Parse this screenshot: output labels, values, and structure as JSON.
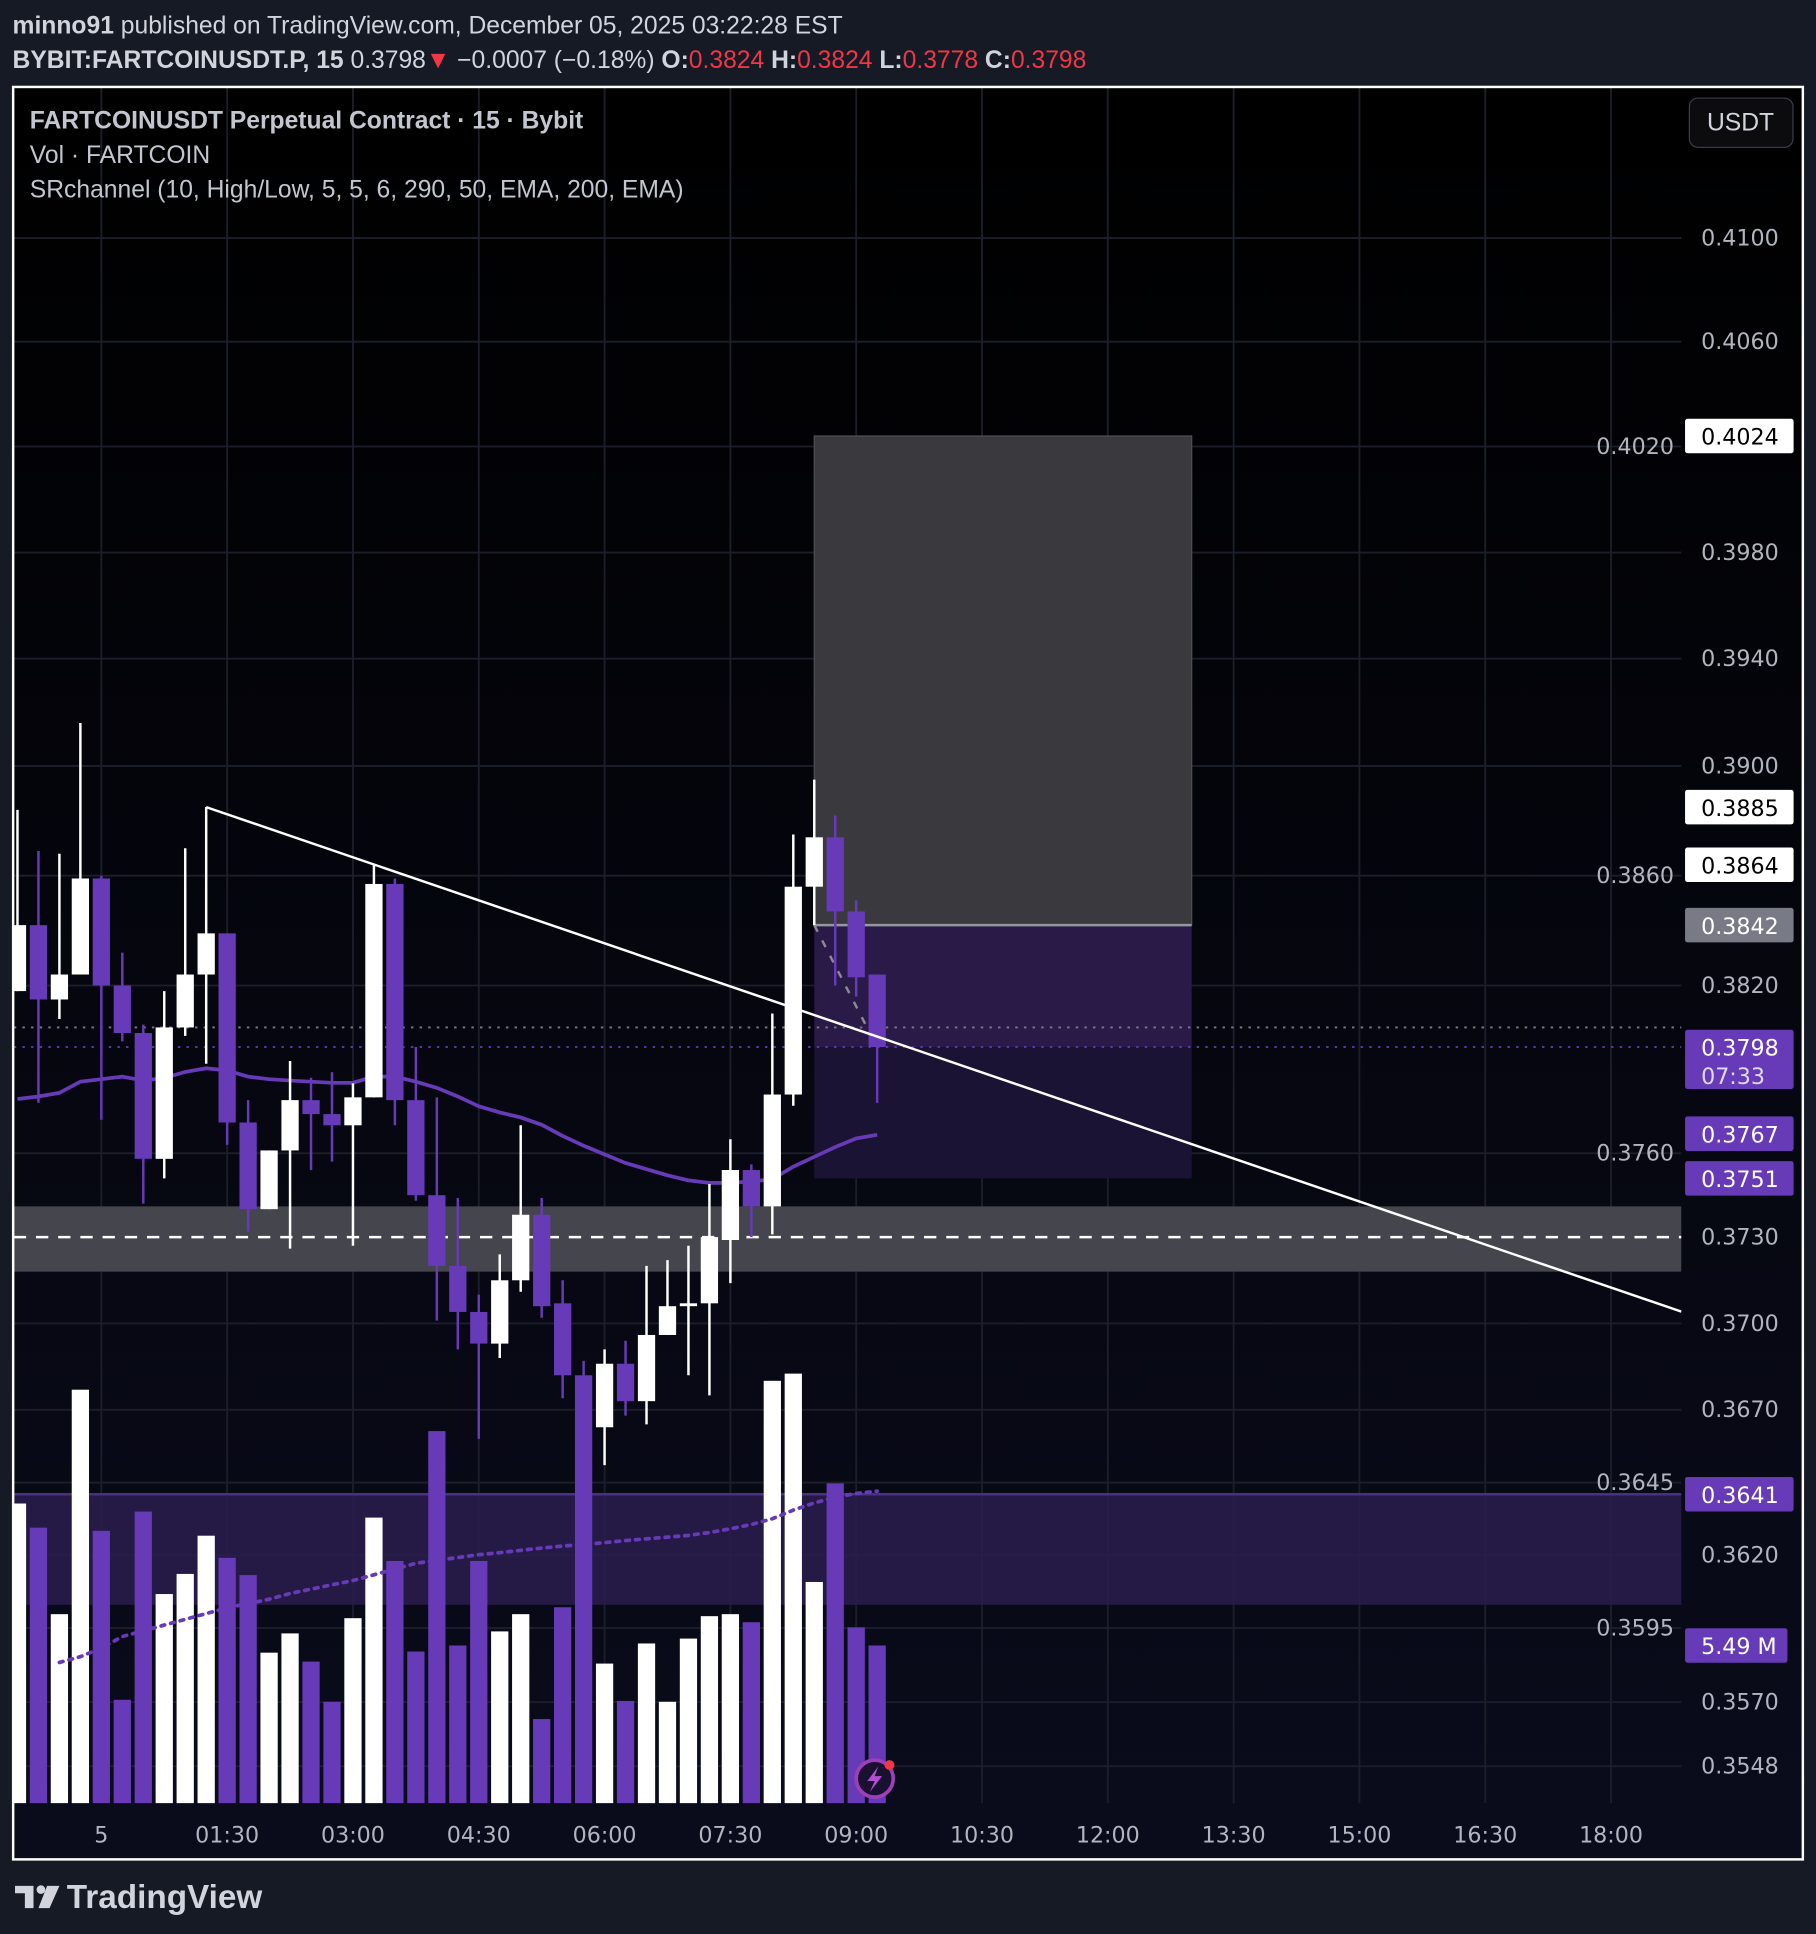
{
  "header": {
    "author": "minno91",
    "published": " published on TradingView.com, December 05, 2025 03:22:28 EST",
    "symbol": "BYBIT:FARTCOINUSDT.P, 15",
    "last": " 0.3798",
    "change_icon": "triangle-down-icon",
    "change": " −0.0007 (−0.18%)",
    "o_label": " O:",
    "o": "0.3824",
    "h_label": " H:",
    "h": "0.3824",
    "l_label": " L:",
    "l": "0.3778",
    "c_label": " C:",
    "c": "0.3798"
  },
  "legend": {
    "title": "FARTCOINUSDT Perpetual Contract · 15 · Bybit",
    "volume": "Vol · FARTCOIN",
    "indicator": "SRchannel (10, High/Low, 5, 5, 6, 290, 50, EMA, 200, EMA)"
  },
  "currency_button": "USDT",
  "colors": {
    "up": "#ffffff",
    "down": "#673ab7",
    "ema": "#673ab7",
    "negative_text": "#f23645",
    "sr_zone": "#45454d",
    "sr_zone_lower": "#2a1d4d"
  },
  "footer": {
    "brand": "TradingView"
  },
  "price_axis": {
    "ticks": [
      "0.4100",
      "0.4060",
      "0.4020",
      "0.3980",
      "0.3940",
      "0.3900",
      "0.3860",
      "0.3820",
      "0.3760",
      "0.3730",
      "0.3700",
      "0.3670",
      "0.3645",
      "0.3620",
      "0.3595",
      "0.3570",
      "0.3548"
    ],
    "tags": [
      {
        "text": "0.4024",
        "price": 0.4024,
        "style": "white"
      },
      {
        "text": "0.3885",
        "price": 0.3885,
        "style": "white"
      },
      {
        "text": "0.3864",
        "price": 0.3864,
        "style": "white"
      },
      {
        "text": "0.3842",
        "price": 0.3842,
        "style": "gray"
      },
      {
        "text": "0.3798",
        "sub": "07:33",
        "price": 0.3798,
        "style": "purple"
      },
      {
        "text": "0.3767",
        "price": 0.3767,
        "style": "purple"
      },
      {
        "text": "0.3751",
        "price": 0.3751,
        "style": "purple"
      },
      {
        "text": "0.3641",
        "price": 0.3641,
        "style": "purple"
      },
      {
        "text": "5.49 M",
        "volume": 5.49,
        "style": "purple"
      }
    ]
  },
  "time_axis": [
    "5",
    "01:30",
    "03:00",
    "04:30",
    "06:00",
    "07:30",
    "09:00",
    "10:30",
    "12:00",
    "13:30",
    "15:00",
    "16:30",
    "18:00"
  ],
  "chart_data": {
    "type": "candlestick",
    "title": "FARTCOINUSDT Perpetual Contract · 15 · Bybit",
    "columns": [
      "time",
      "open",
      "high",
      "low",
      "close"
    ],
    "candles": [
      [
        "23:00",
        0.3818,
        0.3884,
        0.3818,
        0.3842
      ],
      [
        "23:15",
        0.3842,
        0.3869,
        0.3778,
        0.3815
      ],
      [
        "23:30",
        0.3815,
        0.3868,
        0.3808,
        0.3824
      ],
      [
        "23:45",
        0.3824,
        0.3916,
        0.3824,
        0.3859
      ],
      [
        "00:00",
        0.3859,
        0.386,
        0.3772,
        0.382
      ],
      [
        "00:15",
        0.382,
        0.3832,
        0.38,
        0.3803
      ],
      [
        "00:30",
        0.3803,
        0.3806,
        0.3742,
        0.3758
      ],
      [
        "00:45",
        0.3758,
        0.3818,
        0.3751,
        0.3805
      ],
      [
        "01:00",
        0.3805,
        0.387,
        0.3802,
        0.3824
      ],
      [
        "01:15",
        0.3824,
        0.3885,
        0.3792,
        0.3839
      ],
      [
        "01:30",
        0.3839,
        0.3839,
        0.3763,
        0.3771
      ],
      [
        "01:45",
        0.3771,
        0.3779,
        0.3732,
        0.374
      ],
      [
        "02:00",
        0.374,
        0.3761,
        0.374,
        0.3761
      ],
      [
        "02:15",
        0.3761,
        0.3793,
        0.3726,
        0.3779
      ],
      [
        "02:30",
        0.3779,
        0.3787,
        0.3754,
        0.3774
      ],
      [
        "02:45",
        0.3774,
        0.3789,
        0.3757,
        0.377
      ],
      [
        "03:00",
        0.377,
        0.3785,
        0.3727,
        0.378
      ],
      [
        "03:15",
        0.378,
        0.3864,
        0.378,
        0.3857
      ],
      [
        "03:30",
        0.3857,
        0.3859,
        0.377,
        0.3779
      ],
      [
        "03:45",
        0.3779,
        0.3798,
        0.3743,
        0.3745
      ],
      [
        "04:00",
        0.3745,
        0.378,
        0.3701,
        0.372
      ],
      [
        "04:15",
        0.372,
        0.3744,
        0.3691,
        0.3704
      ],
      [
        "04:30",
        0.3704,
        0.371,
        0.366,
        0.3693
      ],
      [
        "04:45",
        0.3693,
        0.3724,
        0.3688,
        0.3715
      ],
      [
        "05:00",
        0.3715,
        0.377,
        0.3711,
        0.3738
      ],
      [
        "05:15",
        0.3738,
        0.3744,
        0.3702,
        0.3706
      ],
      [
        "05:30",
        0.3707,
        0.3715,
        0.3674,
        0.3682
      ],
      [
        "05:45",
        0.3682,
        0.3687,
        0.3663,
        0.3672
      ],
      [
        "06:00",
        0.3664,
        0.3691,
        0.3651,
        0.3686
      ],
      [
        "06:15",
        0.3686,
        0.3694,
        0.3668,
        0.3673
      ],
      [
        "06:30",
        0.3673,
        0.372,
        0.3665,
        0.3696
      ],
      [
        "06:45",
        0.3696,
        0.3722,
        0.3696,
        0.3706
      ],
      [
        "07:00",
        0.3706,
        0.3727,
        0.3682,
        0.3707
      ],
      [
        "07:15",
        0.3707,
        0.3749,
        0.3675,
        0.373
      ],
      [
        "07:30",
        0.3729,
        0.3765,
        0.3714,
        0.3754
      ],
      [
        "07:45",
        0.3754,
        0.3756,
        0.373,
        0.3741
      ],
      [
        "08:00",
        0.3741,
        0.381,
        0.3731,
        0.3781
      ],
      [
        "08:15",
        0.3781,
        0.3875,
        0.3777,
        0.3856
      ],
      [
        "08:30",
        0.3856,
        0.3895,
        0.3842,
        0.3874
      ],
      [
        "08:45",
        0.3874,
        0.3882,
        0.382,
        0.3847
      ],
      [
        "09:00",
        0.3847,
        0.3851,
        0.3816,
        0.3823
      ],
      [
        "09:15",
        0.3824,
        0.3824,
        0.3778,
        0.3798
      ]
    ],
    "volume_millions": [
      10.43,
      9.59,
      6.58,
      14.39,
      9.48,
      3.6,
      10.15,
      7.28,
      7.98,
      9.31,
      8.54,
      7.94,
      5.24,
      5.91,
      4.93,
      3.53,
      6.44,
      9.94,
      8.43,
      5.28,
      12.95,
      5.49,
      8.43,
      5.98,
      6.58,
      2.93,
      6.82,
      13.93,
      4.86,
      3.56,
      5.56,
      3.53,
      5.73,
      6.51,
      6.58,
      6.3,
      14.7,
      14.95,
      7.7,
      11.13,
      6.12,
      5.49
    ],
    "volume_ma_millions": [
      null,
      null,
      4.9,
      5.1,
      5.4,
      5.8,
      6.0,
      6.2,
      6.4,
      6.6,
      6.8,
      6.95,
      7.1,
      7.3,
      7.45,
      7.6,
      7.75,
      7.95,
      8.15,
      8.35,
      8.45,
      8.55,
      8.65,
      8.72,
      8.8,
      8.88,
      8.95,
      9.0,
      9.07,
      9.14,
      9.2,
      9.26,
      9.32,
      9.42,
      9.55,
      9.7,
      9.9,
      10.2,
      10.45,
      10.65,
      10.78,
      10.86
    ],
    "ema": [
      0.37794,
      0.37803,
      0.37816,
      0.37856,
      0.37865,
      0.37874,
      0.3786,
      0.37869,
      0.37891,
      0.37904,
      0.37896,
      0.37874,
      0.37865,
      0.3786,
      0.37856,
      0.37852,
      0.37852,
      0.37874,
      0.37874,
      0.37856,
      0.37834,
      0.37803,
      0.37768,
      0.37746,
      0.37728,
      0.37702,
      0.37662,
      0.37627,
      0.37596,
      0.37565,
      0.37543,
      0.37521,
      0.37503,
      0.37494,
      0.37494,
      0.37499,
      0.37507,
      0.37552,
      0.37587,
      0.37622,
      0.37653,
      0.37666
    ],
    "trendline": [
      {
        "time": "01:15",
        "price": 0.3885
      },
      {
        "time": "18:45",
        "price": 0.3705
      }
    ],
    "position_tool": {
      "start": "08:30",
      "end": "13:00",
      "stop": 0.4024,
      "entry": 0.3842,
      "target": 0.3751,
      "current": 0.3798
    },
    "sr_zones": [
      {
        "top": 0.3741,
        "bottom": 0.3718,
        "mid": 0.373,
        "color": "#45454d"
      },
      {
        "top": 0.3641,
        "bottom": 0.3603,
        "color": "#2a1d4d"
      }
    ],
    "horizontal_lines": [
      {
        "price": 0.3805,
        "style": "dotted",
        "color": "#787b86"
      },
      {
        "price": 0.3798,
        "style": "dotted",
        "color": "#673ab7"
      }
    ],
    "ylim": [
      0.3548,
      0.41
    ]
  }
}
